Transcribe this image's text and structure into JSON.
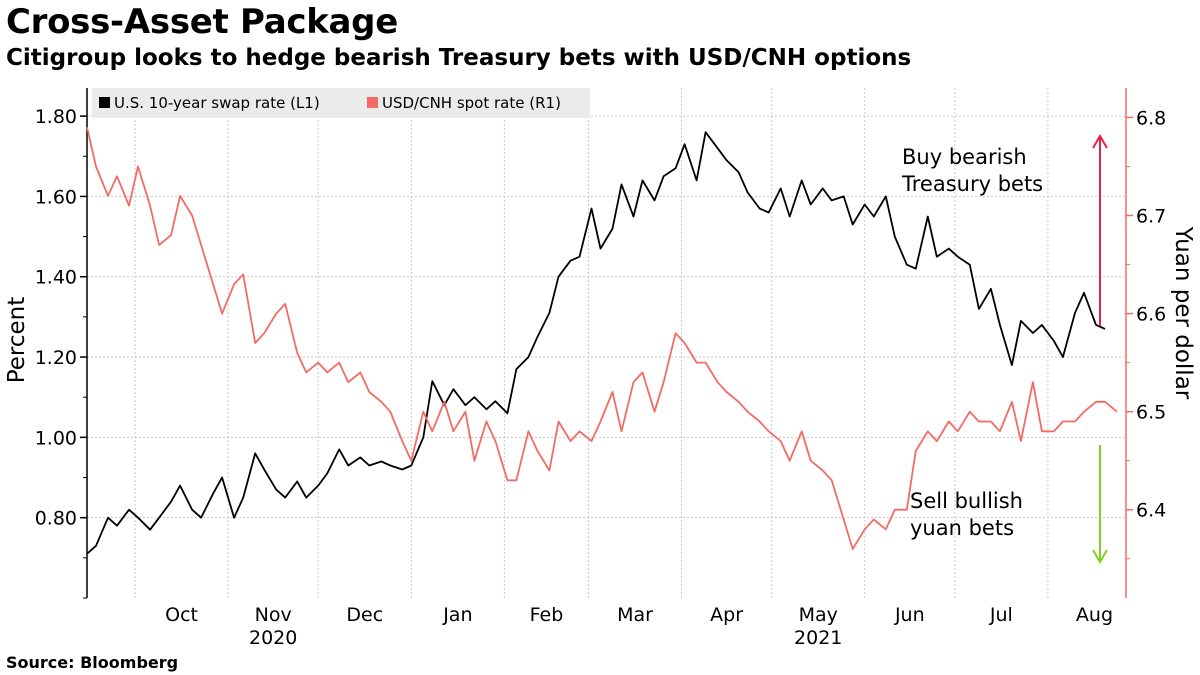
{
  "header": {
    "title": "Cross-Asset Package",
    "subtitle": "Citigroup looks to hedge bearish Treasury bets with USD/CNH options"
  },
  "footer": {
    "source": "Source: Bloomberg"
  },
  "chart_data": {
    "type": "line",
    "title": "Cross-Asset Package",
    "subtitle": "Citigroup looks to hedge bearish Treasury bets with USD/CNH options",
    "ylabel": "Percent",
    "y2label": "Yuan per dollar",
    "ylim": [
      0.6,
      1.87
    ],
    "y2lim": [
      6.31,
      6.83
    ],
    "yticks": [
      0.8,
      1.0,
      1.2,
      1.4,
      1.6,
      1.8
    ],
    "ytick_labels": [
      "0.80",
      "1.00",
      "1.20",
      "1.40",
      "1.60",
      "1.80"
    ],
    "y2ticks": [
      6.4,
      6.5,
      6.6,
      6.7,
      6.8
    ],
    "y2tick_labels": [
      "6.4",
      "6.5",
      "6.6",
      "6.7",
      "6.8"
    ],
    "x_months": [
      {
        "label": "Oct",
        "year": "2020"
      },
      {
        "label": "Nov",
        "year": "2020"
      },
      {
        "label": "Dec",
        "year": "2020"
      },
      {
        "label": "Jan",
        "year": "2021"
      },
      {
        "label": "Feb",
        "year": "2021"
      },
      {
        "label": "Mar",
        "year": "2021"
      },
      {
        "label": "Apr",
        "year": "2021"
      },
      {
        "label": "May",
        "year": "2021"
      },
      {
        "label": "Jun",
        "year": "2021"
      },
      {
        "label": "Jul",
        "year": "2021"
      },
      {
        "label": "Aug",
        "year": "2021"
      }
    ],
    "year_labels": [
      {
        "label": "2020",
        "month": "Nov"
      },
      {
        "label": "2021",
        "month": "May"
      }
    ],
    "x_range": [
      "2020-09-15",
      "2021-08-27"
    ],
    "grid": true,
    "legend_position": "top-left",
    "series": [
      {
        "name": "U.S. 10-year swap rate (L1)",
        "axis": "left",
        "color": "#000000",
        "x": [
          "2020-09-15",
          "2020-09-18",
          "2020-09-22",
          "2020-09-25",
          "2020-09-29",
          "2020-10-02",
          "2020-10-06",
          "2020-10-09",
          "2020-10-13",
          "2020-10-16",
          "2020-10-20",
          "2020-10-23",
          "2020-10-27",
          "2020-10-30",
          "2020-11-03",
          "2020-11-06",
          "2020-11-10",
          "2020-11-13",
          "2020-11-17",
          "2020-11-20",
          "2020-11-24",
          "2020-11-27",
          "2020-12-01",
          "2020-12-04",
          "2020-12-08",
          "2020-12-11",
          "2020-12-15",
          "2020-12-18",
          "2020-12-22",
          "2020-12-25",
          "2020-12-29",
          "2021-01-01",
          "2021-01-05",
          "2021-01-08",
          "2021-01-12",
          "2021-01-15",
          "2021-01-19",
          "2021-01-22",
          "2021-01-26",
          "2021-01-29",
          "2021-02-02",
          "2021-02-05",
          "2021-02-09",
          "2021-02-12",
          "2021-02-16",
          "2021-02-19",
          "2021-02-23",
          "2021-02-26",
          "2021-03-02",
          "2021-03-05",
          "2021-03-09",
          "2021-03-12",
          "2021-03-16",
          "2021-03-19",
          "2021-03-23",
          "2021-03-26",
          "2021-03-30",
          "2021-04-02",
          "2021-04-06",
          "2021-04-09",
          "2021-04-13",
          "2021-04-16",
          "2021-04-20",
          "2021-04-23",
          "2021-04-27",
          "2021-04-30",
          "2021-05-04",
          "2021-05-07",
          "2021-05-11",
          "2021-05-14",
          "2021-05-18",
          "2021-05-21",
          "2021-05-25",
          "2021-05-28",
          "2021-06-01",
          "2021-06-04",
          "2021-06-08",
          "2021-06-11",
          "2021-06-15",
          "2021-06-18",
          "2021-06-22",
          "2021-06-25",
          "2021-06-29",
          "2021-07-02",
          "2021-07-06",
          "2021-07-09",
          "2021-07-13",
          "2021-07-16",
          "2021-07-20",
          "2021-07-23",
          "2021-07-27",
          "2021-07-30",
          "2021-08-03",
          "2021-08-06",
          "2021-08-10",
          "2021-08-13",
          "2021-08-17",
          "2021-08-20"
        ],
        "values": [
          0.71,
          0.73,
          0.8,
          0.78,
          0.82,
          0.8,
          0.77,
          0.8,
          0.84,
          0.88,
          0.82,
          0.8,
          0.86,
          0.9,
          0.8,
          0.85,
          0.96,
          0.92,
          0.87,
          0.85,
          0.89,
          0.85,
          0.88,
          0.91,
          0.97,
          0.93,
          0.95,
          0.93,
          0.94,
          0.93,
          0.92,
          0.93,
          1.0,
          1.14,
          1.08,
          1.12,
          1.08,
          1.1,
          1.07,
          1.09,
          1.06,
          1.17,
          1.2,
          1.25,
          1.31,
          1.4,
          1.44,
          1.45,
          1.57,
          1.47,
          1.52,
          1.63,
          1.55,
          1.64,
          1.59,
          1.65,
          1.67,
          1.73,
          1.64,
          1.76,
          1.72,
          1.69,
          1.66,
          1.61,
          1.57,
          1.56,
          1.62,
          1.55,
          1.64,
          1.58,
          1.62,
          1.59,
          1.6,
          1.53,
          1.58,
          1.55,
          1.6,
          1.5,
          1.43,
          1.42,
          1.55,
          1.45,
          1.47,
          1.45,
          1.43,
          1.32,
          1.37,
          1.28,
          1.18,
          1.29,
          1.26,
          1.28,
          1.24,
          1.2,
          1.31,
          1.36,
          1.28,
          1.27
        ]
      },
      {
        "name": "USD/CNH spot rate (R1)",
        "axis": "right",
        "color": "#f26c64",
        "x": [
          "2020-09-15",
          "2020-09-18",
          "2020-09-22",
          "2020-09-25",
          "2020-09-29",
          "2020-10-02",
          "2020-10-06",
          "2020-10-09",
          "2020-10-13",
          "2020-10-16",
          "2020-10-20",
          "2020-10-23",
          "2020-10-27",
          "2020-10-30",
          "2020-11-03",
          "2020-11-06",
          "2020-11-10",
          "2020-11-13",
          "2020-11-17",
          "2020-11-20",
          "2020-11-24",
          "2020-11-27",
          "2020-12-01",
          "2020-12-04",
          "2020-12-08",
          "2020-12-11",
          "2020-12-15",
          "2020-12-18",
          "2020-12-22",
          "2020-12-25",
          "2020-12-29",
          "2021-01-01",
          "2021-01-05",
          "2021-01-08",
          "2021-01-12",
          "2021-01-15",
          "2021-01-19",
          "2021-01-22",
          "2021-01-26",
          "2021-01-29",
          "2021-02-02",
          "2021-02-05",
          "2021-02-09",
          "2021-02-12",
          "2021-02-16",
          "2021-02-19",
          "2021-02-23",
          "2021-02-26",
          "2021-03-02",
          "2021-03-05",
          "2021-03-09",
          "2021-03-12",
          "2021-03-16",
          "2021-03-19",
          "2021-03-23",
          "2021-03-26",
          "2021-03-30",
          "2021-04-02",
          "2021-04-06",
          "2021-04-09",
          "2021-04-13",
          "2021-04-16",
          "2021-04-20",
          "2021-04-23",
          "2021-04-27",
          "2021-04-30",
          "2021-05-04",
          "2021-05-07",
          "2021-05-11",
          "2021-05-14",
          "2021-05-18",
          "2021-05-21",
          "2021-05-25",
          "2021-05-28",
          "2021-06-01",
          "2021-06-04",
          "2021-06-08",
          "2021-06-11",
          "2021-06-15",
          "2021-06-18",
          "2021-06-22",
          "2021-06-25",
          "2021-06-29",
          "2021-07-02",
          "2021-07-06",
          "2021-07-09",
          "2021-07-13",
          "2021-07-16",
          "2021-07-20",
          "2021-07-23",
          "2021-07-27",
          "2021-07-30",
          "2021-08-03",
          "2021-08-06",
          "2021-08-10",
          "2021-08-13",
          "2021-08-17",
          "2021-08-20",
          "2021-08-24"
        ],
        "values": [
          6.79,
          6.75,
          6.72,
          6.74,
          6.71,
          6.75,
          6.71,
          6.67,
          6.68,
          6.72,
          6.7,
          6.67,
          6.63,
          6.6,
          6.63,
          6.64,
          6.57,
          6.58,
          6.6,
          6.61,
          6.56,
          6.54,
          6.55,
          6.54,
          6.55,
          6.53,
          6.54,
          6.52,
          6.51,
          6.5,
          6.47,
          6.45,
          6.5,
          6.48,
          6.51,
          6.48,
          6.5,
          6.45,
          6.49,
          6.47,
          6.43,
          6.43,
          6.48,
          6.46,
          6.44,
          6.49,
          6.47,
          6.48,
          6.47,
          6.49,
          6.52,
          6.48,
          6.53,
          6.54,
          6.5,
          6.53,
          6.58,
          6.57,
          6.55,
          6.55,
          6.53,
          6.52,
          6.51,
          6.5,
          6.49,
          6.48,
          6.47,
          6.45,
          6.48,
          6.45,
          6.44,
          6.43,
          6.39,
          6.36,
          6.38,
          6.39,
          6.38,
          6.4,
          6.4,
          6.46,
          6.48,
          6.47,
          6.49,
          6.48,
          6.5,
          6.49,
          6.49,
          6.48,
          6.51,
          6.47,
          6.53,
          6.48,
          6.48,
          6.49,
          6.49,
          6.5,
          6.51,
          6.51,
          6.5
        ]
      }
    ],
    "annotations": [
      {
        "text_lines": [
          "Buy bearish",
          "Treasury bets"
        ],
        "arrow": "up",
        "color": "#e8204e"
      },
      {
        "text_lines": [
          "Sell bullish",
          "yuan bets"
        ],
        "arrow": "down",
        "color": "#7ed321"
      }
    ]
  }
}
